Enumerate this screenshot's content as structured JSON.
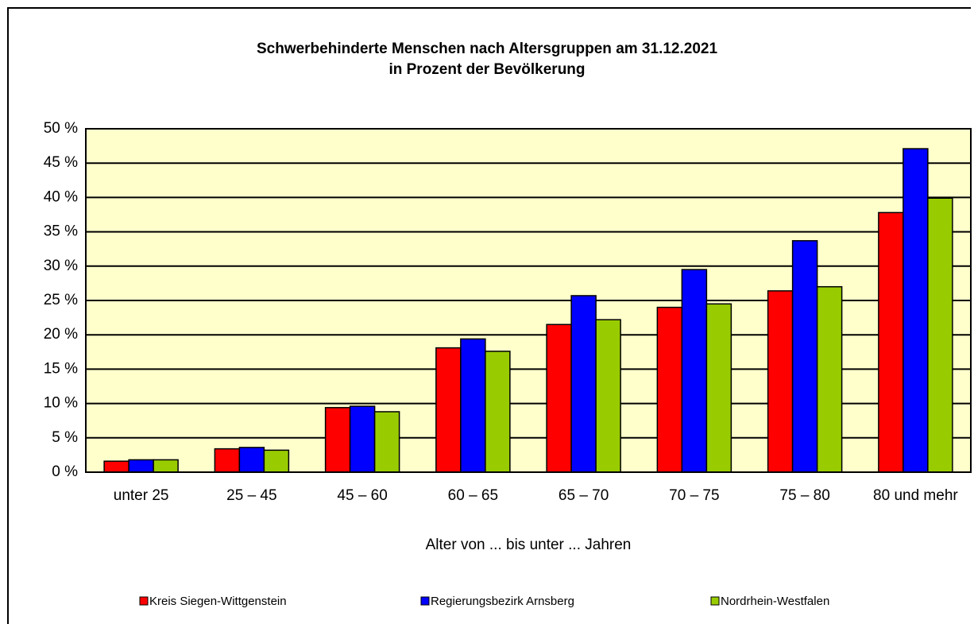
{
  "chart_data": {
    "type": "bar",
    "title": "Schwerbehinderte Menschen nach Altersgruppen am 31.12.2021",
    "subtitle": "in Prozent der Bevölkerung",
    "x_label": "Alter von ... bis unter ... Jahren",
    "categories": [
      "unter 25",
      "25 – 45",
      "45 – 60",
      "60 – 65",
      "65 – 70",
      "70 – 75",
      "75 – 80",
      "80 und mehr"
    ],
    "series": [
      {
        "name": "Kreis Siegen-Wittgenstein",
        "color": "#ff0000",
        "values": [
          1.6,
          3.4,
          9.4,
          18.1,
          21.5,
          24.0,
          26.4,
          37.8
        ]
      },
      {
        "name": "Regierungsbezirk Arnsberg",
        "color": "#0000ff",
        "values": [
          1.8,
          3.6,
          9.6,
          19.4,
          25.7,
          29.5,
          33.7,
          47.1
        ]
      },
      {
        "name": "Nordrhein-Westfalen",
        "color": "#99cc00",
        "values": [
          1.8,
          3.2,
          8.8,
          17.6,
          22.2,
          24.5,
          27.0,
          39.9
        ]
      }
    ],
    "ylim": [
      0,
      50
    ],
    "yticks": [
      {
        "value": 0,
        "label": "0 %"
      },
      {
        "value": 5,
        "label": "5 %"
      },
      {
        "value": 10,
        "label": "10 %"
      },
      {
        "value": 15,
        "label": "15 %"
      },
      {
        "value": 20,
        "label": "20 %"
      },
      {
        "value": 25,
        "label": "25 %"
      },
      {
        "value": 30,
        "label": "30 %"
      },
      {
        "value": 35,
        "label": "35 %"
      },
      {
        "value": 40,
        "label": "40 %"
      },
      {
        "value": 45,
        "label": "45 %"
      },
      {
        "value": 50,
        "label": "50 %"
      }
    ],
    "grid": true,
    "plot_background": "#ffffcc",
    "legend": "bottom"
  }
}
